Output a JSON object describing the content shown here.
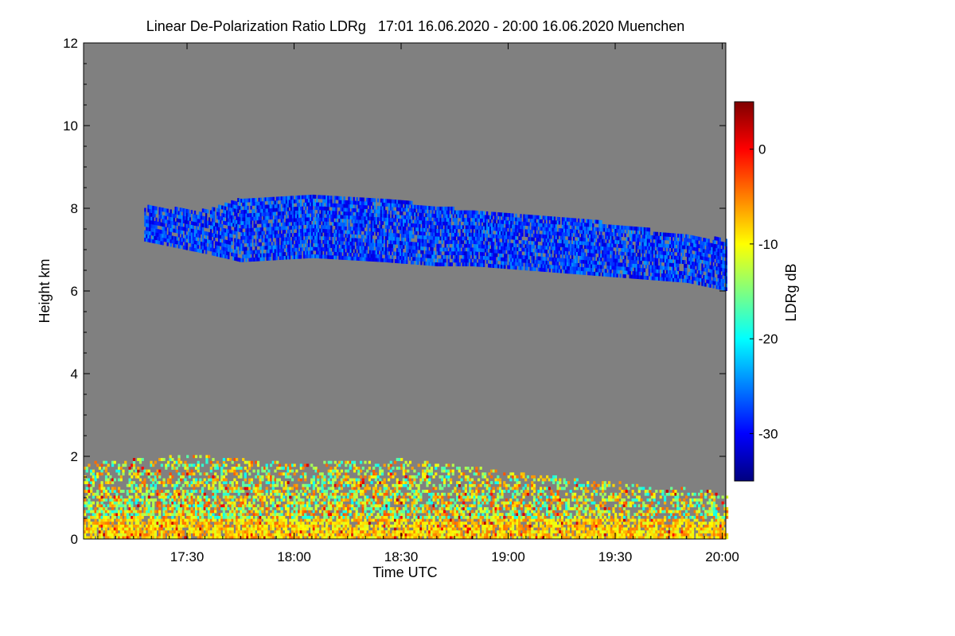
{
  "chart_data": {
    "type": "heatmap",
    "title": "Linear De-Polarization Ratio LDRg   17:01 16.06.2020 - 20:00 16.06.2020 Muenchen",
    "xlabel": "Time UTC",
    "ylabel": "Height km",
    "x_range_minutes_utc": [
      1021,
      1201
    ],
    "ylim": [
      0,
      12
    ],
    "x_ticks": [
      {
        "minute": 1050,
        "label": "17:30"
      },
      {
        "minute": 1080,
        "label": "18:00"
      },
      {
        "minute": 1110,
        "label": "18:30"
      },
      {
        "minute": 1140,
        "label": "19:00"
      },
      {
        "minute": 1170,
        "label": "19:30"
      },
      {
        "minute": 1200,
        "label": "20:00"
      }
    ],
    "y_ticks": [
      0,
      2,
      4,
      6,
      8,
      10,
      12
    ],
    "colorbar": {
      "label": "LDRg dB",
      "range": [
        -35,
        5
      ],
      "ticks": [
        0,
        -10,
        -20,
        -30
      ],
      "colormap": "jet"
    },
    "background_color": "#808080",
    "features": {
      "cirrus_layer": {
        "ldr_db": -28,
        "top_km": [
          [
            1038,
            8.0
          ],
          [
            1055,
            7.9
          ],
          [
            1065,
            8.2
          ],
          [
            1085,
            8.3
          ],
          [
            1105,
            8.2
          ],
          [
            1120,
            8.0
          ],
          [
            1130,
            7.9
          ],
          [
            1145,
            7.8
          ],
          [
            1160,
            7.7
          ],
          [
            1175,
            7.5
          ],
          [
            1190,
            7.3
          ],
          [
            1201,
            7.2
          ]
        ],
        "bottom_km": [
          [
            1038,
            7.2
          ],
          [
            1055,
            6.9
          ],
          [
            1065,
            6.7
          ],
          [
            1085,
            6.8
          ],
          [
            1105,
            6.7
          ],
          [
            1120,
            6.6
          ],
          [
            1130,
            6.6
          ],
          [
            1145,
            6.5
          ],
          [
            1160,
            6.4
          ],
          [
            1175,
            6.3
          ],
          [
            1190,
            6.2
          ],
          [
            1201,
            6.0
          ]
        ]
      },
      "boundary_layer": {
        "ldr_db_range": [
          -20,
          -3
        ],
        "top_km": [
          [
            1021,
            1.8
          ],
          [
            1050,
            2.0
          ],
          [
            1080,
            1.8
          ],
          [
            1110,
            1.9
          ],
          [
            1130,
            1.7
          ],
          [
            1150,
            1.5
          ],
          [
            1175,
            1.3
          ],
          [
            1201,
            1.1
          ]
        ]
      }
    }
  }
}
